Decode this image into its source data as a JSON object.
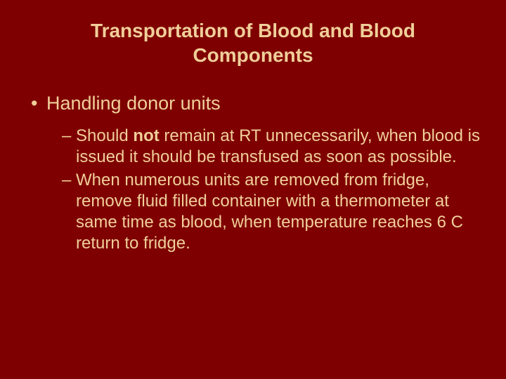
{
  "background_color": "#7f0000",
  "text_color": "#f0cf9a",
  "font_family": "Arial",
  "title_fontsize": 28,
  "level1_fontsize": 27,
  "level2_fontsize": 24,
  "title": "Transportation of Blood and Blood Components",
  "level1_item": "Handling donor units",
  "sub1_prefix": "Should ",
  "sub1_bold": "not",
  "sub1_rest": " remain at RT unnecessarily, when blood is issued it should be transfused as soon as possible.",
  "sub2": "When numerous units are removed from fridge, remove fluid filled container with a thermometer at same time as blood, when temperature reaches 6 C return to fridge."
}
